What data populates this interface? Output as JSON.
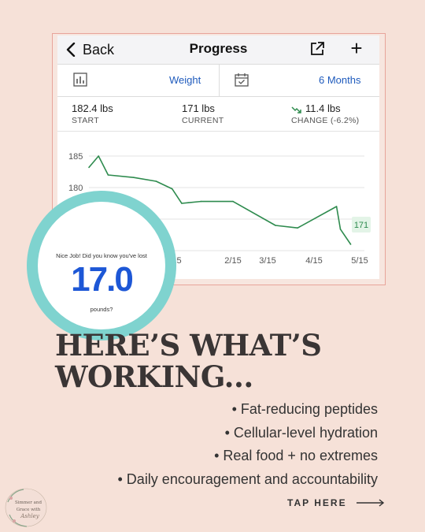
{
  "app": {
    "nav": {
      "back_label": "Back",
      "title": "Progress"
    },
    "filters": {
      "metric": "Weight",
      "range": "6 Months"
    },
    "stats": {
      "start": {
        "value": "182.4 lbs",
        "label": "START"
      },
      "current": {
        "value": "171 lbs",
        "label": "CURRENT"
      },
      "change": {
        "value": "11.4 lbs",
        "label": "CHANGE (-6.2%)"
      }
    }
  },
  "chart_data": {
    "type": "line",
    "y_ticks": [
      "185",
      "180"
    ],
    "x_ticks": [
      "/15",
      "2/15",
      "3/15",
      "4/15",
      "5/15"
    ],
    "end_label": "171",
    "line_color": "#2e8b4e",
    "points": [
      {
        "x": "1/1",
        "y": 183.2
      },
      {
        "x": "1/4",
        "y": 185.0
      },
      {
        "x": "1/7",
        "y": 182.0
      },
      {
        "x": "1/15",
        "y": 181.6
      },
      {
        "x": "1/22",
        "y": 181.0
      },
      {
        "x": "1/27",
        "y": 179.8
      },
      {
        "x": "1/30",
        "y": 177.5
      },
      {
        "x": "2/1",
        "y": 177.6
      },
      {
        "x": "2/5",
        "y": 177.8
      },
      {
        "x": "2/15",
        "y": 177.8
      },
      {
        "x": "3/15",
        "y": 174.0
      },
      {
        "x": "3/30",
        "y": 173.6
      },
      {
        "x": "4/27",
        "y": 177.0
      },
      {
        "x": "4/30",
        "y": 173.4
      },
      {
        "x": "5/8",
        "y": 171.0
      }
    ]
  },
  "badge": {
    "question": "Nice Job! Did you know you've lost",
    "number": "17.0",
    "unit": "pounds?"
  },
  "headline": {
    "line1": "HERE’S WHAT’S",
    "line2": "WORKING..."
  },
  "bullets": [
    "• Fat-reducing peptides",
    "• Cellular-level hydration",
    "• Real food + no extremes",
    "• Daily encouragement and accountability"
  ],
  "cta": {
    "label": "TAP HERE"
  },
  "logo": {
    "lines": [
      "Simmer and",
      "Grace with",
      "Ashley"
    ]
  },
  "colors": {
    "background": "#f6e1d8",
    "accent_teal": "#7fd3cf",
    "number_blue": "#1d57d6",
    "link_blue": "#1f5bbd"
  }
}
